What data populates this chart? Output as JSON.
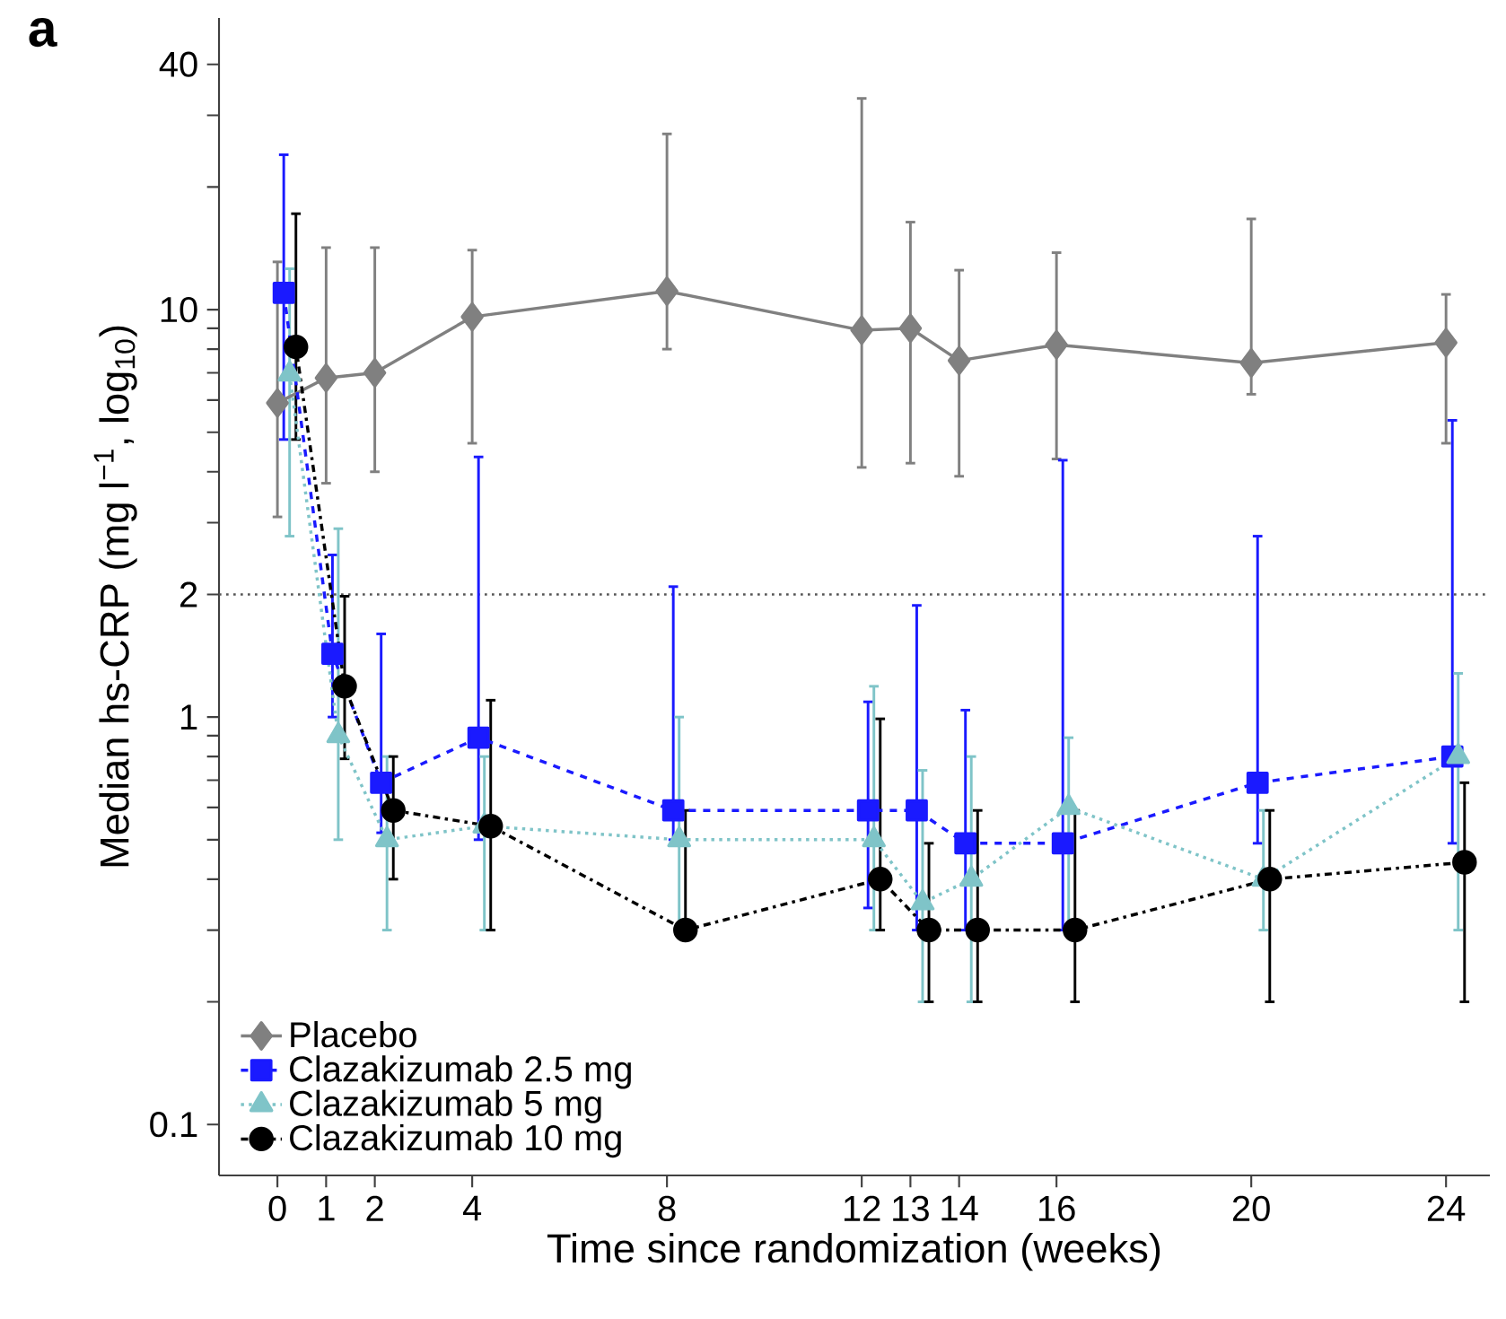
{
  "chart_data": {
    "type": "line",
    "title": "a",
    "xlabel": "Time since randomization (weeks)",
    "ylabel": "Median hs-CRP (mg l$^{−1}$, log$_{10}$)",
    "log": "y",
    "legend": "bottom left",
    "xlim": [
      -1.2,
      24.9
    ],
    "xticks": [
      0,
      1,
      2,
      4,
      8,
      12,
      13,
      14,
      16,
      20,
      24
    ],
    "ylim": [
      0.075,
      52
    ],
    "yticks": [
      0.1,
      {
        "value": 0.2,
        "label": null
      },
      {
        "value": 0.3,
        "label": null
      },
      {
        "value": 0.4,
        "label": null
      },
      {
        "value": 0.5,
        "label": null
      },
      {
        "value": 0.6,
        "label": null
      },
      {
        "value": 0.7,
        "label": null
      },
      {
        "value": 0.8,
        "label": null
      },
      {
        "value": 0.9,
        "label": null
      },
      1,
      2,
      {
        "value": 3,
        "label": null
      },
      {
        "value": 4,
        "label": null
      },
      {
        "value": 5,
        "label": null
      },
      {
        "value": 6,
        "label": null
      },
      {
        "value": 7,
        "label": null
      },
      {
        "value": 8,
        "label": null
      },
      {
        "value": 9,
        "label": null
      },
      10,
      {
        "value": 20,
        "label": null
      },
      {
        "value": 30,
        "label": null
      },
      40
    ],
    "ref_lines": [
      {
        "axis": "y",
        "value": 2,
        "color": "#555555",
        "line_style": "dotted"
      }
    ],
    "series": [
      {
        "name": "Placebo",
        "color": "#808080",
        "marker": "diamond",
        "line_style": "solid",
        "x": [
          0,
          1,
          2,
          4,
          8,
          12,
          13,
          14,
          16,
          20,
          24
        ],
        "values": [
          5.9,
          6.8,
          7.0,
          9.6,
          11.1,
          8.9,
          9.0,
          7.5,
          8.2,
          7.4,
          8.3
        ],
        "errors": [
          [
            3.1,
            13.1
          ],
          [
            3.75,
            14.2
          ],
          [
            4.0,
            14.2
          ],
          [
            4.7,
            14.0
          ],
          [
            8.0,
            27
          ],
          [
            4.1,
            33
          ],
          [
            4.2,
            16.4
          ],
          [
            3.9,
            12.5
          ],
          [
            4.3,
            13.8
          ],
          [
            6.2,
            16.7
          ],
          [
            4.7,
            10.9
          ]
        ]
      },
      {
        "name": "Clazakizumab 2.5 mg",
        "color": "#1a1aff",
        "marker": "square",
        "line_style": "dashed",
        "x": [
          0.13,
          1.13,
          2.13,
          4.13,
          8.13,
          12.13,
          13.13,
          14.13,
          16.13,
          20.13,
          24.13
        ],
        "values": [
          11.0,
          1.43,
          0.69,
          0.89,
          0.59,
          0.59,
          0.59,
          0.49,
          0.49,
          0.69,
          0.8
        ],
        "errors": [
          [
            4.8,
            24
          ],
          [
            1.0,
            2.5
          ],
          [
            0.52,
            1.6
          ],
          [
            0.5,
            4.35
          ],
          [
            0.5,
            2.09
          ],
          [
            0.34,
            1.09
          ],
          [
            0.3,
            1.88
          ],
          [
            0.3,
            1.04
          ],
          [
            0.3,
            4.27
          ],
          [
            0.49,
            2.78
          ],
          [
            0.49,
            5.35
          ]
        ]
      },
      {
        "name": "Clazakizumab 5 mg",
        "color": "#7fc4c8",
        "marker": "triangle",
        "line_style": "dotted",
        "x": [
          0.25,
          1.25,
          2.25,
          4.25,
          8.25,
          12.25,
          13.25,
          14.25,
          16.25,
          20.25,
          24.25
        ],
        "values": [
          6.95,
          0.9,
          0.5,
          0.54,
          0.5,
          0.5,
          0.35,
          0.4,
          0.6,
          0.4,
          0.8
        ],
        "errors": [
          [
            2.78,
            12.6
          ],
          [
            0.5,
            2.9
          ],
          [
            0.3,
            0.8
          ],
          [
            0.3,
            0.8
          ],
          [
            0.3,
            1.0
          ],
          [
            0.3,
            1.19
          ],
          [
            0.2,
            0.74
          ],
          [
            0.2,
            0.8
          ],
          [
            0.3,
            0.89
          ],
          [
            0.3,
            0.59
          ],
          [
            0.3,
            1.28
          ]
        ]
      },
      {
        "name": "Clazakizumab 10 mg",
        "color": "#000000",
        "marker": "circle",
        "line_style": "dashdot",
        "x": [
          0.38,
          1.38,
          2.38,
          4.38,
          8.38,
          12.38,
          13.38,
          14.38,
          16.38,
          20.38,
          24.38
        ],
        "values": [
          8.1,
          1.19,
          0.59,
          0.54,
          0.3,
          0.4,
          0.3,
          0.3,
          0.3,
          0.4,
          0.44
        ],
        "errors": [
          [
            4.8,
            17.2
          ],
          [
            0.79,
            1.98
          ],
          [
            0.4,
            0.8
          ],
          [
            0.3,
            1.1
          ],
          [
            0.3,
            0.59
          ],
          [
            0.3,
            0.99
          ],
          [
            0.2,
            0.49
          ],
          [
            0.2,
            0.59
          ],
          [
            0.2,
            0.59
          ],
          [
            0.2,
            0.59
          ],
          [
            0.2,
            0.69
          ]
        ]
      }
    ]
  }
}
